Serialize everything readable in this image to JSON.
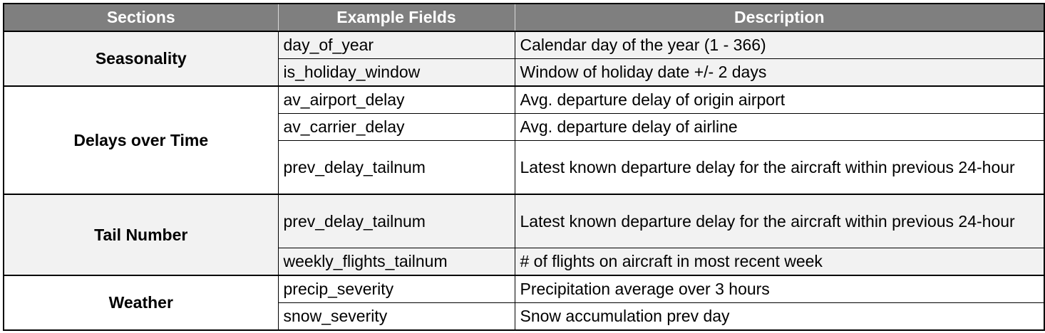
{
  "headers": {
    "sections": "Sections",
    "fields": "Example Fields",
    "description": "Description"
  },
  "groups": [
    {
      "section": "Seasonality",
      "rows": [
        {
          "field": "day_of_year",
          "description": "Calendar day of the year (1 - 366)"
        },
        {
          "field": "is_holiday_window",
          "description": "Window of holiday date +/- 2 days"
        }
      ]
    },
    {
      "section": "Delays over Time",
      "rows": [
        {
          "field": "av_airport_delay",
          "description": "Avg. departure delay of origin airport"
        },
        {
          "field": "av_carrier_delay",
          "description": "Avg. departure delay of airline"
        },
        {
          "field": "prev_delay_tailnum",
          "description": "Latest known departure delay for the aircraft within previous 24-hour"
        }
      ]
    },
    {
      "section": "Tail Number",
      "rows": [
        {
          "field": "prev_delay_tailnum",
          "description": "Latest known departure delay for the aircraft within previous 24-hour"
        },
        {
          "field": "weekly_flights_tailnum",
          "description": "# of flights on aircraft in most recent week"
        }
      ]
    },
    {
      "section": "Weather",
      "rows": [
        {
          "field": "precip_severity",
          "description": "Precipitation average over 3 hours"
        },
        {
          "field": "snow_severity",
          "description": "Snow accumulation prev day"
        }
      ]
    }
  ]
}
